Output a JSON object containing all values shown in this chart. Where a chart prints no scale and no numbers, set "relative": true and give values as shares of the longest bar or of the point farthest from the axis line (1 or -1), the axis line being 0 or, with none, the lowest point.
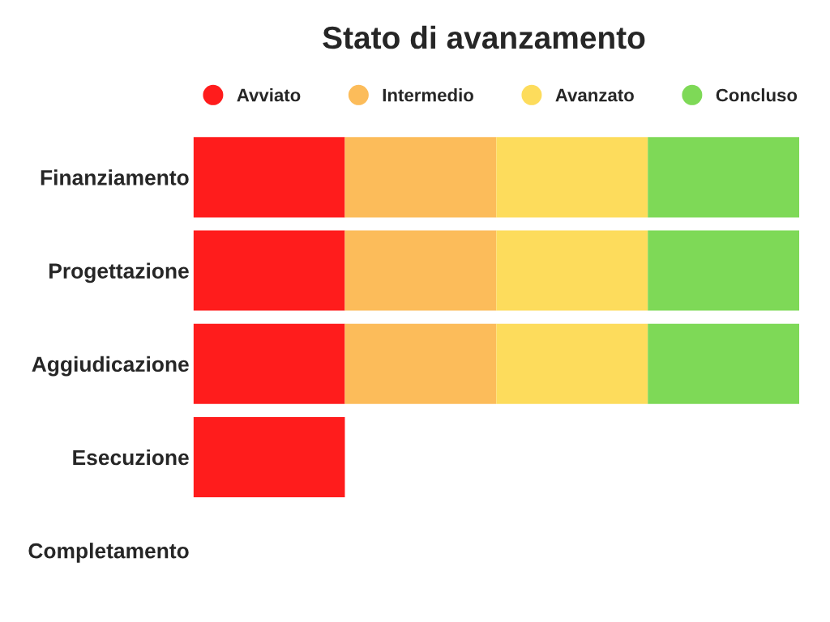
{
  "chart_data": {
    "type": "bar",
    "title": "Stato di avanzamento",
    "orientation": "horizontal",
    "stacked": true,
    "relative": true,
    "legend": "top",
    "categories": [
      "Finanziamento",
      "Progettazione",
      "Aggiudicazione",
      "Esecuzione",
      "Completamento"
    ],
    "series": [
      {
        "name": "Avviato",
        "color": "#ff1c1c",
        "values": [
          0.25,
          0.25,
          0.25,
          0.25,
          0
        ]
      },
      {
        "name": "Intermedio",
        "color": "#fcbc5a",
        "values": [
          0.25,
          0.25,
          0.25,
          0,
          0
        ]
      },
      {
        "name": "Avanzato",
        "color": "#fddc5c",
        "values": [
          0.25,
          0.25,
          0.25,
          0,
          0
        ]
      },
      {
        "name": "Concluso",
        "color": "#7ed957",
        "values": [
          0.25,
          0.25,
          0.25,
          0,
          0
        ]
      }
    ]
  }
}
